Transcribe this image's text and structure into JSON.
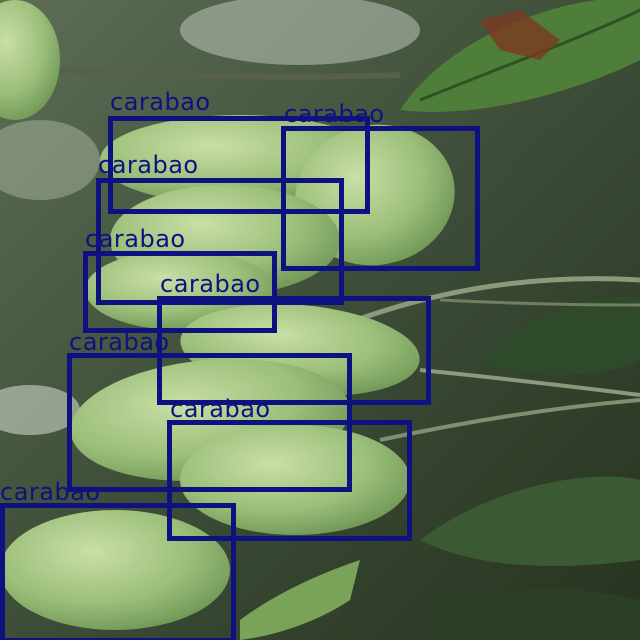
{
  "detections": [
    {
      "label": "carabao"
    },
    {
      "label": "carabao"
    },
    {
      "label": "carabao"
    },
    {
      "label": "carabao"
    },
    {
      "label": "carabao"
    },
    {
      "label": "carabao"
    },
    {
      "label": "carabao"
    },
    {
      "label": "carabao"
    }
  ],
  "colors": {
    "box": "#0d1280",
    "leaf_dark": "#2e4a2a",
    "mango": "#9cbf7a"
  }
}
